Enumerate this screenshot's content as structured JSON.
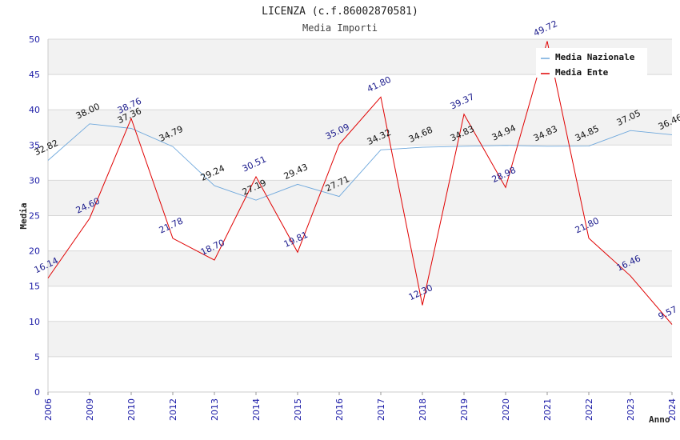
{
  "chart_data": {
    "type": "line",
    "title": "LICENZA (c.f.86002870581)",
    "subtitle": "Media Importi",
    "xlabel": "Anno",
    "ylabel": "Media",
    "ylim": [
      0,
      50
    ],
    "yticks": [
      0,
      5,
      10,
      15,
      20,
      25,
      30,
      35,
      40,
      45,
      50
    ],
    "categories": [
      "2006",
      "2009",
      "2010",
      "2012",
      "2013",
      "2014",
      "2015",
      "2016",
      "2017",
      "2018",
      "2019",
      "2020",
      "2021",
      "2022",
      "2023",
      "2024"
    ],
    "series": [
      {
        "name": "Media Nazionale",
        "color": "#6fa8dc",
        "values": [
          32.82,
          38.0,
          37.36,
          34.79,
          29.24,
          27.19,
          29.43,
          27.71,
          34.32,
          34.68,
          34.83,
          34.94,
          34.83,
          34.85,
          37.05,
          36.46
        ],
        "labels": [
          "32.82",
          "38.00",
          "37.36",
          "34.79",
          "29.24",
          "27.19",
          "29.43",
          "27.71",
          "34.32",
          "34.68",
          "34.83",
          "34.94",
          "34.83",
          "34.85",
          "37.05",
          "36.46"
        ]
      },
      {
        "name": "Media Ente",
        "color": "#e00000",
        "values": [
          16.14,
          24.6,
          38.76,
          21.78,
          18.7,
          30.51,
          19.81,
          35.09,
          41.8,
          12.3,
          39.37,
          28.98,
          49.72,
          21.8,
          16.46,
          9.57
        ],
        "labels": [
          "16.14",
          "24.60",
          "38.76",
          "21.78",
          "18.70",
          "30.51",
          "19.81",
          "35.09",
          "41.80",
          "12.30",
          "39.37",
          "28.98",
          "49.72",
          "21.80",
          "16.46",
          "9.57"
        ]
      }
    ],
    "legend": {
      "position": "top-right"
    },
    "grid": true
  }
}
